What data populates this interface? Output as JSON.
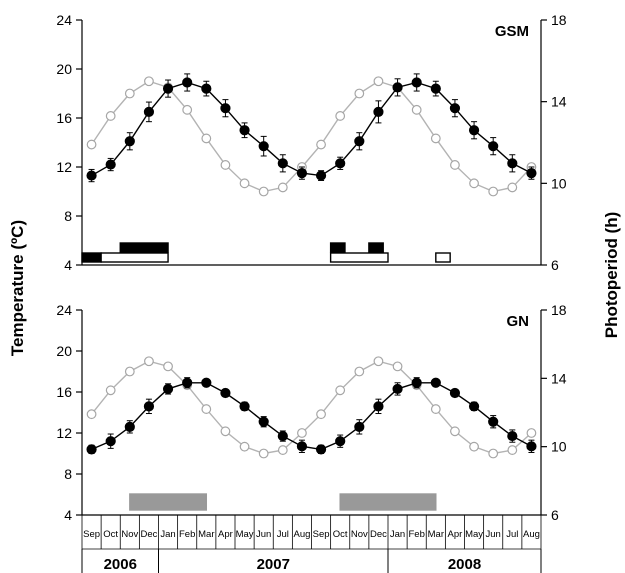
{
  "figure": {
    "y_left_label": "Temperature (ºC)",
    "y_right_label": "Photoperiod (h)",
    "months": [
      "Sep",
      "Oct",
      "Nov",
      "Dec",
      "Jan",
      "Feb",
      "Mar",
      "Apr",
      "May",
      "Jun",
      "Jul",
      "Aug",
      "Sep",
      "Oct",
      "Nov",
      "Dec",
      "Jan",
      "Feb",
      "Mar",
      "Apr",
      "May",
      "Jun",
      "Jul",
      "Aug"
    ],
    "years": [
      "2006",
      "2007",
      "2008"
    ]
  },
  "chart_data": [
    {
      "type": "line",
      "title": "GSM",
      "x": [
        "Sep",
        "Oct",
        "Nov",
        "Dec",
        "Jan",
        "Feb",
        "Mar",
        "Apr",
        "May",
        "Jun",
        "Jul",
        "Aug",
        "Sep",
        "Oct",
        "Nov",
        "Dec",
        "Jan",
        "Feb",
        "Mar",
        "Apr",
        "May",
        "Jun",
        "Jul",
        "Aug"
      ],
      "ylim_left": [
        4,
        24
      ],
      "yticks_left": [
        4,
        8,
        12,
        16,
        20,
        24
      ],
      "ylim_right": [
        6,
        18
      ],
      "yticks_right": [
        6,
        10,
        14,
        18
      ],
      "ylabel_left": "Temperature (ºC)",
      "ylabel_right": "Photoperiod (h)",
      "series": [
        {
          "axis": "left",
          "style": "filled-circles-with-error-bars",
          "values": [
            11.3,
            12.2,
            14.1,
            16.5,
            18.4,
            18.9,
            18.4,
            16.8,
            15.0,
            13.7,
            12.3,
            11.5,
            11.3,
            12.3,
            14.1,
            16.5,
            18.5,
            18.9,
            18.4,
            16.8,
            15.0,
            13.7,
            12.3,
            11.5
          ],
          "errors": [
            0.5,
            0.5,
            0.7,
            0.8,
            0.7,
            0.7,
            0.6,
            0.7,
            0.6,
            0.8,
            0.7,
            0.5,
            0.4,
            0.5,
            0.7,
            0.9,
            0.7,
            0.7,
            0.6,
            0.7,
            0.7,
            0.7,
            0.7,
            0.5
          ]
        },
        {
          "axis": "right",
          "style": "open-circles",
          "values": [
            11.9,
            13.3,
            14.4,
            15.0,
            14.7,
            13.6,
            12.2,
            10.9,
            10.0,
            9.6,
            9.8,
            10.8,
            11.9,
            13.3,
            14.4,
            15.0,
            14.7,
            13.6,
            12.2,
            10.9,
            10.0,
            9.6,
            9.8,
            10.8
          ]
        }
      ],
      "periods": [
        {
          "fill": "black",
          "row": "lower",
          "start": 0.0,
          "end": 1.0
        },
        {
          "fill": "black",
          "row": "upper",
          "start": 2.0,
          "end": 4.5
        },
        {
          "fill": "white",
          "row": "lower",
          "start": 1.0,
          "end": 4.5
        },
        {
          "fill": "black",
          "row": "upper",
          "start": 13.0,
          "end": 13.75
        },
        {
          "fill": "black",
          "row": "upper",
          "start": 15.0,
          "end": 15.75
        },
        {
          "fill": "white",
          "row": "lower",
          "start": 13.0,
          "end": 16.0
        },
        {
          "fill": "white",
          "row": "lower",
          "start": 18.5,
          "end": 19.25
        }
      ]
    },
    {
      "type": "line",
      "title": "GN",
      "x": [
        "Sep",
        "Oct",
        "Nov",
        "Dec",
        "Jan",
        "Feb",
        "Mar",
        "Apr",
        "May",
        "Jun",
        "Jul",
        "Aug",
        "Sep",
        "Oct",
        "Nov",
        "Dec",
        "Jan",
        "Feb",
        "Mar",
        "Apr",
        "May",
        "Jun",
        "Jul",
        "Aug"
      ],
      "ylim_left": [
        4,
        24
      ],
      "yticks_left": [
        4,
        8,
        12,
        16,
        20,
        24
      ],
      "ylim_right": [
        6,
        18
      ],
      "yticks_right": [
        6,
        10,
        14,
        18
      ],
      "ylabel_left": "Temperature (ºC)",
      "ylabel_right": "Photoperiod (h)",
      "series": [
        {
          "axis": "left",
          "style": "filled-circles-with-error-bars",
          "values": [
            10.4,
            11.2,
            12.6,
            14.6,
            16.3,
            16.9,
            16.9,
            15.9,
            14.6,
            13.1,
            11.7,
            10.7,
            10.4,
            11.2,
            12.6,
            14.6,
            16.3,
            16.9,
            16.9,
            15.9,
            14.6,
            13.1,
            11.7,
            10.7
          ],
          "errors": [
            0.4,
            0.7,
            0.6,
            0.7,
            0.5,
            0.5,
            0.3,
            0.3,
            0.4,
            0.5,
            0.5,
            0.6,
            0.4,
            0.6,
            0.7,
            0.7,
            0.6,
            0.5,
            0.3,
            0.3,
            0.4,
            0.6,
            0.6,
            0.6
          ]
        },
        {
          "axis": "right",
          "style": "open-circles",
          "values": [
            11.9,
            13.3,
            14.4,
            15.0,
            14.7,
            13.6,
            12.2,
            10.9,
            10.0,
            9.6,
            9.8,
            10.8,
            11.9,
            13.3,
            14.4,
            15.0,
            14.7,
            13.6,
            12.2,
            10.9,
            10.0,
            9.6,
            9.8,
            10.8
          ]
        }
      ],
      "periods": [
        {
          "fill": "gray",
          "row": "single",
          "start": 2.5,
          "end": 6.5
        },
        {
          "fill": "gray",
          "row": "single",
          "start": 13.5,
          "end": 18.5
        }
      ]
    }
  ]
}
